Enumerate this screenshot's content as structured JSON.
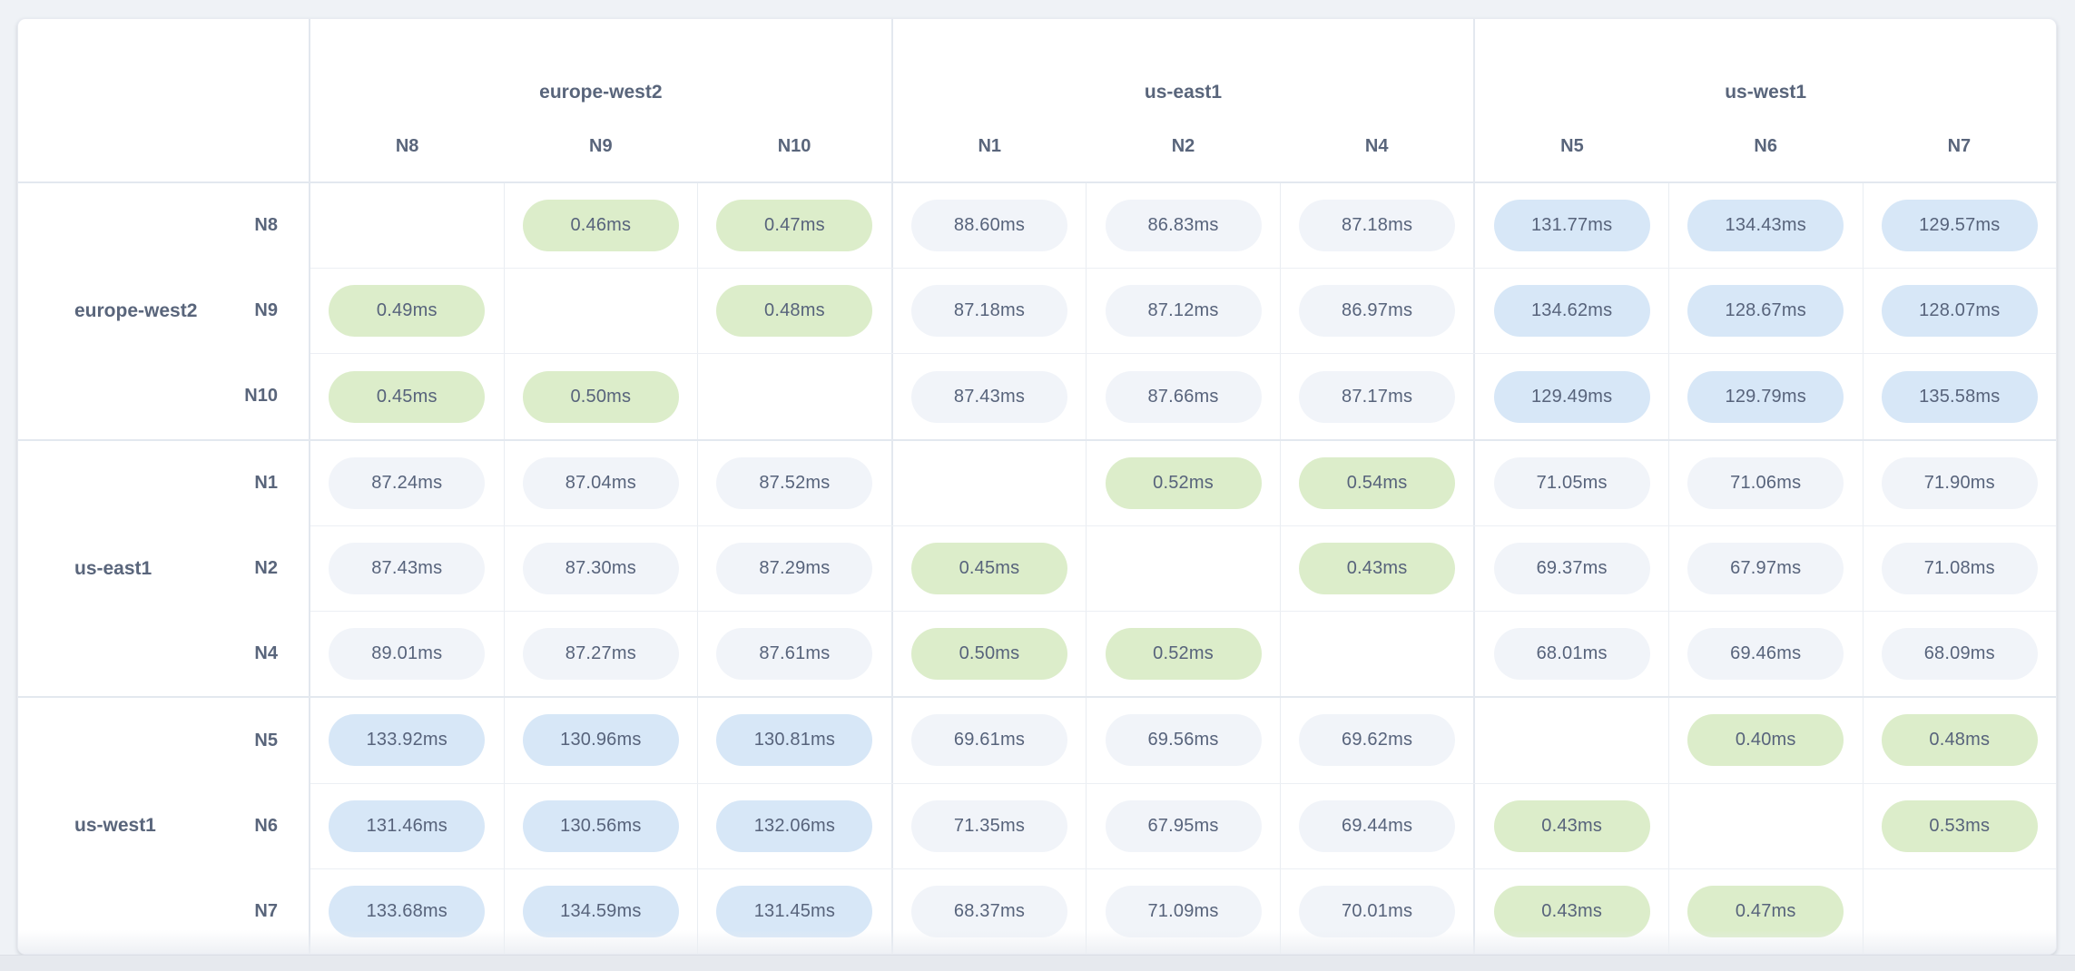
{
  "colors": {
    "page_bg": "#eff2f6",
    "card_bg": "#ffffff",
    "low_latency_pill": "#dcedca",
    "mid_latency_pill": "#f1f4f9",
    "high_latency_pill": "#d7e7f7",
    "label_text": "#59657b",
    "value_text": "#57637b"
  },
  "unit": "ms",
  "column_groups": [
    {
      "region": "europe-west2",
      "nodes": [
        "N8",
        "N9",
        "N10"
      ]
    },
    {
      "region": "us-east1",
      "nodes": [
        "N1",
        "N2",
        "N4"
      ]
    },
    {
      "region": "us-west1",
      "nodes": [
        "N5",
        "N6",
        "N7"
      ]
    }
  ],
  "row_groups": [
    {
      "region": "europe-west2",
      "rows": [
        {
          "node": "N8",
          "cells": [
            null,
            {
              "value": "0.46ms",
              "level": "low"
            },
            {
              "value": "0.47ms",
              "level": "low"
            },
            {
              "value": "88.60ms",
              "level": "mid"
            },
            {
              "value": "86.83ms",
              "level": "mid"
            },
            {
              "value": "87.18ms",
              "level": "mid"
            },
            {
              "value": "131.77ms",
              "level": "high"
            },
            {
              "value": "134.43ms",
              "level": "high"
            },
            {
              "value": "129.57ms",
              "level": "high"
            }
          ]
        },
        {
          "node": "N9",
          "cells": [
            {
              "value": "0.49ms",
              "level": "low"
            },
            null,
            {
              "value": "0.48ms",
              "level": "low"
            },
            {
              "value": "87.18ms",
              "level": "mid"
            },
            {
              "value": "87.12ms",
              "level": "mid"
            },
            {
              "value": "86.97ms",
              "level": "mid"
            },
            {
              "value": "134.62ms",
              "level": "high"
            },
            {
              "value": "128.67ms",
              "level": "high"
            },
            {
              "value": "128.07ms",
              "level": "high"
            }
          ]
        },
        {
          "node": "N10",
          "cells": [
            {
              "value": "0.45ms",
              "level": "low"
            },
            {
              "value": "0.50ms",
              "level": "low"
            },
            null,
            {
              "value": "87.43ms",
              "level": "mid"
            },
            {
              "value": "87.66ms",
              "level": "mid"
            },
            {
              "value": "87.17ms",
              "level": "mid"
            },
            {
              "value": "129.49ms",
              "level": "high"
            },
            {
              "value": "129.79ms",
              "level": "high"
            },
            {
              "value": "135.58ms",
              "level": "high"
            }
          ]
        }
      ]
    },
    {
      "region": "us-east1",
      "rows": [
        {
          "node": "N1",
          "cells": [
            {
              "value": "87.24ms",
              "level": "mid"
            },
            {
              "value": "87.04ms",
              "level": "mid"
            },
            {
              "value": "87.52ms",
              "level": "mid"
            },
            null,
            {
              "value": "0.52ms",
              "level": "low"
            },
            {
              "value": "0.54ms",
              "level": "low"
            },
            {
              "value": "71.05ms",
              "level": "mid"
            },
            {
              "value": "71.06ms",
              "level": "mid"
            },
            {
              "value": "71.90ms",
              "level": "mid"
            }
          ]
        },
        {
          "node": "N2",
          "cells": [
            {
              "value": "87.43ms",
              "level": "mid"
            },
            {
              "value": "87.30ms",
              "level": "mid"
            },
            {
              "value": "87.29ms",
              "level": "mid"
            },
            {
              "value": "0.45ms",
              "level": "low"
            },
            null,
            {
              "value": "0.43ms",
              "level": "low"
            },
            {
              "value": "69.37ms",
              "level": "mid"
            },
            {
              "value": "67.97ms",
              "level": "mid"
            },
            {
              "value": "71.08ms",
              "level": "mid"
            }
          ]
        },
        {
          "node": "N4",
          "cells": [
            {
              "value": "89.01ms",
              "level": "mid"
            },
            {
              "value": "87.27ms",
              "level": "mid"
            },
            {
              "value": "87.61ms",
              "level": "mid"
            },
            {
              "value": "0.50ms",
              "level": "low"
            },
            {
              "value": "0.52ms",
              "level": "low"
            },
            null,
            {
              "value": "68.01ms",
              "level": "mid"
            },
            {
              "value": "69.46ms",
              "level": "mid"
            },
            {
              "value": "68.09ms",
              "level": "mid"
            }
          ]
        }
      ]
    },
    {
      "region": "us-west1",
      "rows": [
        {
          "node": "N5",
          "cells": [
            {
              "value": "133.92ms",
              "level": "high"
            },
            {
              "value": "130.96ms",
              "level": "high"
            },
            {
              "value": "130.81ms",
              "level": "high"
            },
            {
              "value": "69.61ms",
              "level": "mid"
            },
            {
              "value": "69.56ms",
              "level": "mid"
            },
            {
              "value": "69.62ms",
              "level": "mid"
            },
            null,
            {
              "value": "0.40ms",
              "level": "low"
            },
            {
              "value": "0.48ms",
              "level": "low"
            }
          ]
        },
        {
          "node": "N6",
          "cells": [
            {
              "value": "131.46ms",
              "level": "high"
            },
            {
              "value": "130.56ms",
              "level": "high"
            },
            {
              "value": "132.06ms",
              "level": "high"
            },
            {
              "value": "71.35ms",
              "level": "mid"
            },
            {
              "value": "67.95ms",
              "level": "mid"
            },
            {
              "value": "69.44ms",
              "level": "mid"
            },
            {
              "value": "0.43ms",
              "level": "low"
            },
            null,
            {
              "value": "0.53ms",
              "level": "low"
            }
          ]
        },
        {
          "node": "N7",
          "cells": [
            {
              "value": "133.68ms",
              "level": "high"
            },
            {
              "value": "134.59ms",
              "level": "high"
            },
            {
              "value": "131.45ms",
              "level": "high"
            },
            {
              "value": "68.37ms",
              "level": "mid"
            },
            {
              "value": "71.09ms",
              "level": "mid"
            },
            {
              "value": "70.01ms",
              "level": "mid"
            },
            {
              "value": "0.43ms",
              "level": "low"
            },
            {
              "value": "0.47ms",
              "level": "low"
            },
            null
          ]
        }
      ]
    }
  ]
}
